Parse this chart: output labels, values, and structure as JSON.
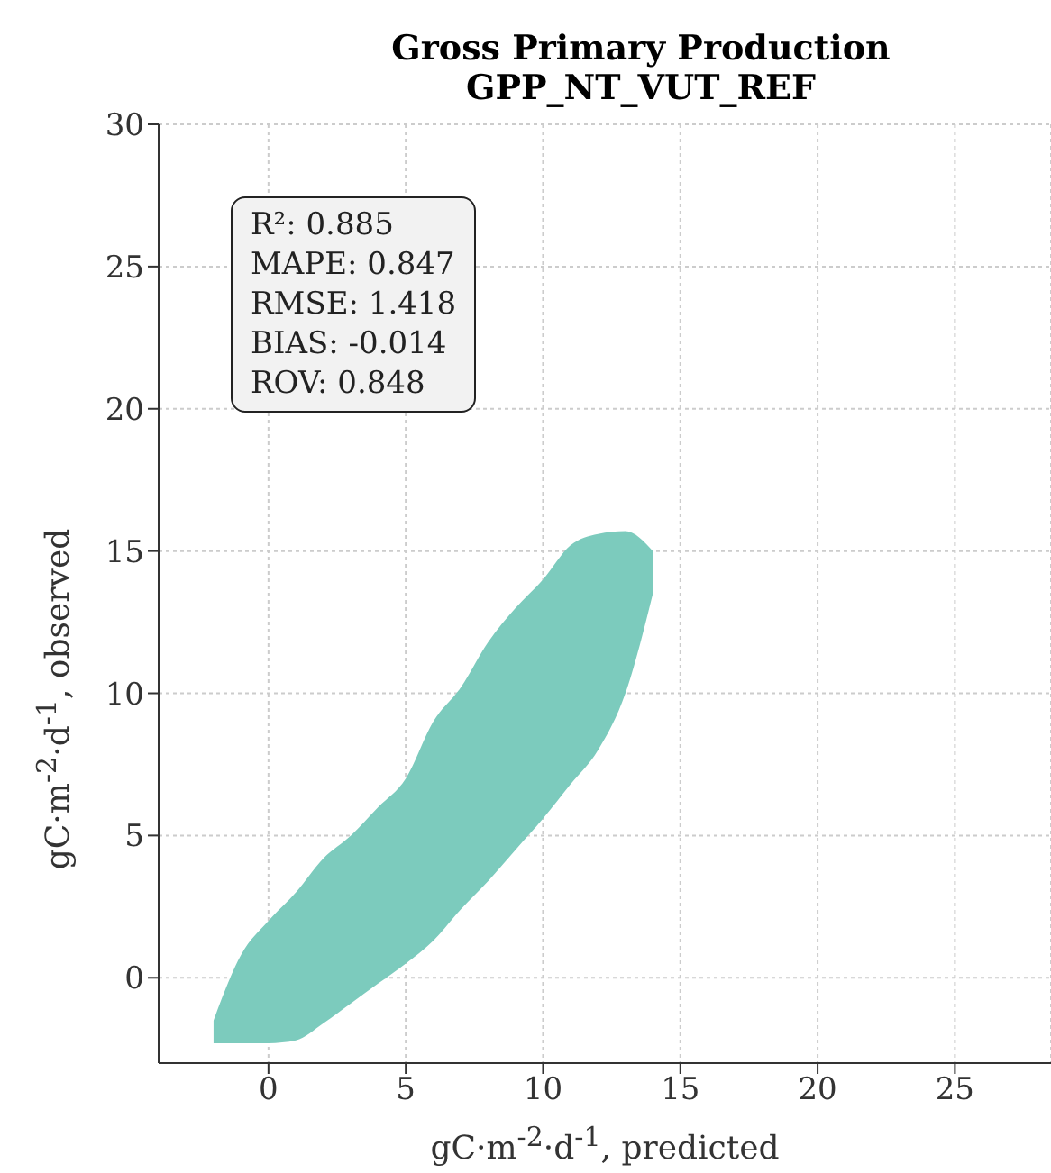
{
  "chart_data": {
    "type": "area",
    "title": "Gross Primary Production",
    "subtitle": "GPP_NT_VUT_REF",
    "xlabel": "gC·m$^{-2}$·d$^{-1}$, predicted",
    "ylabel": "gC·m$^{-2}$·d$^{-1}$, observed",
    "annotations": [
      "R²: 0.885",
      "MAPE: 0.847",
      "RMSE: 1.418",
      "BIAS: -0.014",
      "ROV: 0.848"
    ],
    "series": [
      {
        "color": "#7ccbbd",
        "x": [
          -2,
          -1,
          0,
          1,
          2,
          3,
          4,
          5,
          6,
          7,
          8,
          9,
          10,
          11,
          12,
          13,
          14
        ],
        "values": [
          null,
          null,
          null,
          null,
          null,
          null,
          null,
          null,
          null,
          null,
          null,
          null,
          null,
          null,
          null,
          null,
          null
        ],
        "lower": [
          -2.3,
          -2.3,
          -2.3,
          -2.2,
          -1.6,
          -0.9,
          -0.2,
          0.5,
          1.3,
          2.4,
          3.4,
          4.5,
          5.6,
          6.8,
          8.0,
          10.0,
          13.5
        ],
        "upper": [
          -1.5,
          0.8,
          2.0,
          3.0,
          4.2,
          5.0,
          6.0,
          7.0,
          9.0,
          10.2,
          11.8,
          13.0,
          14.0,
          15.2,
          15.6,
          15.7,
          15.0
        ]
      }
    ],
    "xlim": [
      -4,
      28.5
    ],
    "ylim": [
      -3,
      30
    ],
    "xticks": [
      0,
      5,
      10,
      15,
      20,
      25
    ],
    "yticks": [
      0,
      5,
      10,
      15,
      20,
      25,
      30
    ],
    "grid": true
  }
}
